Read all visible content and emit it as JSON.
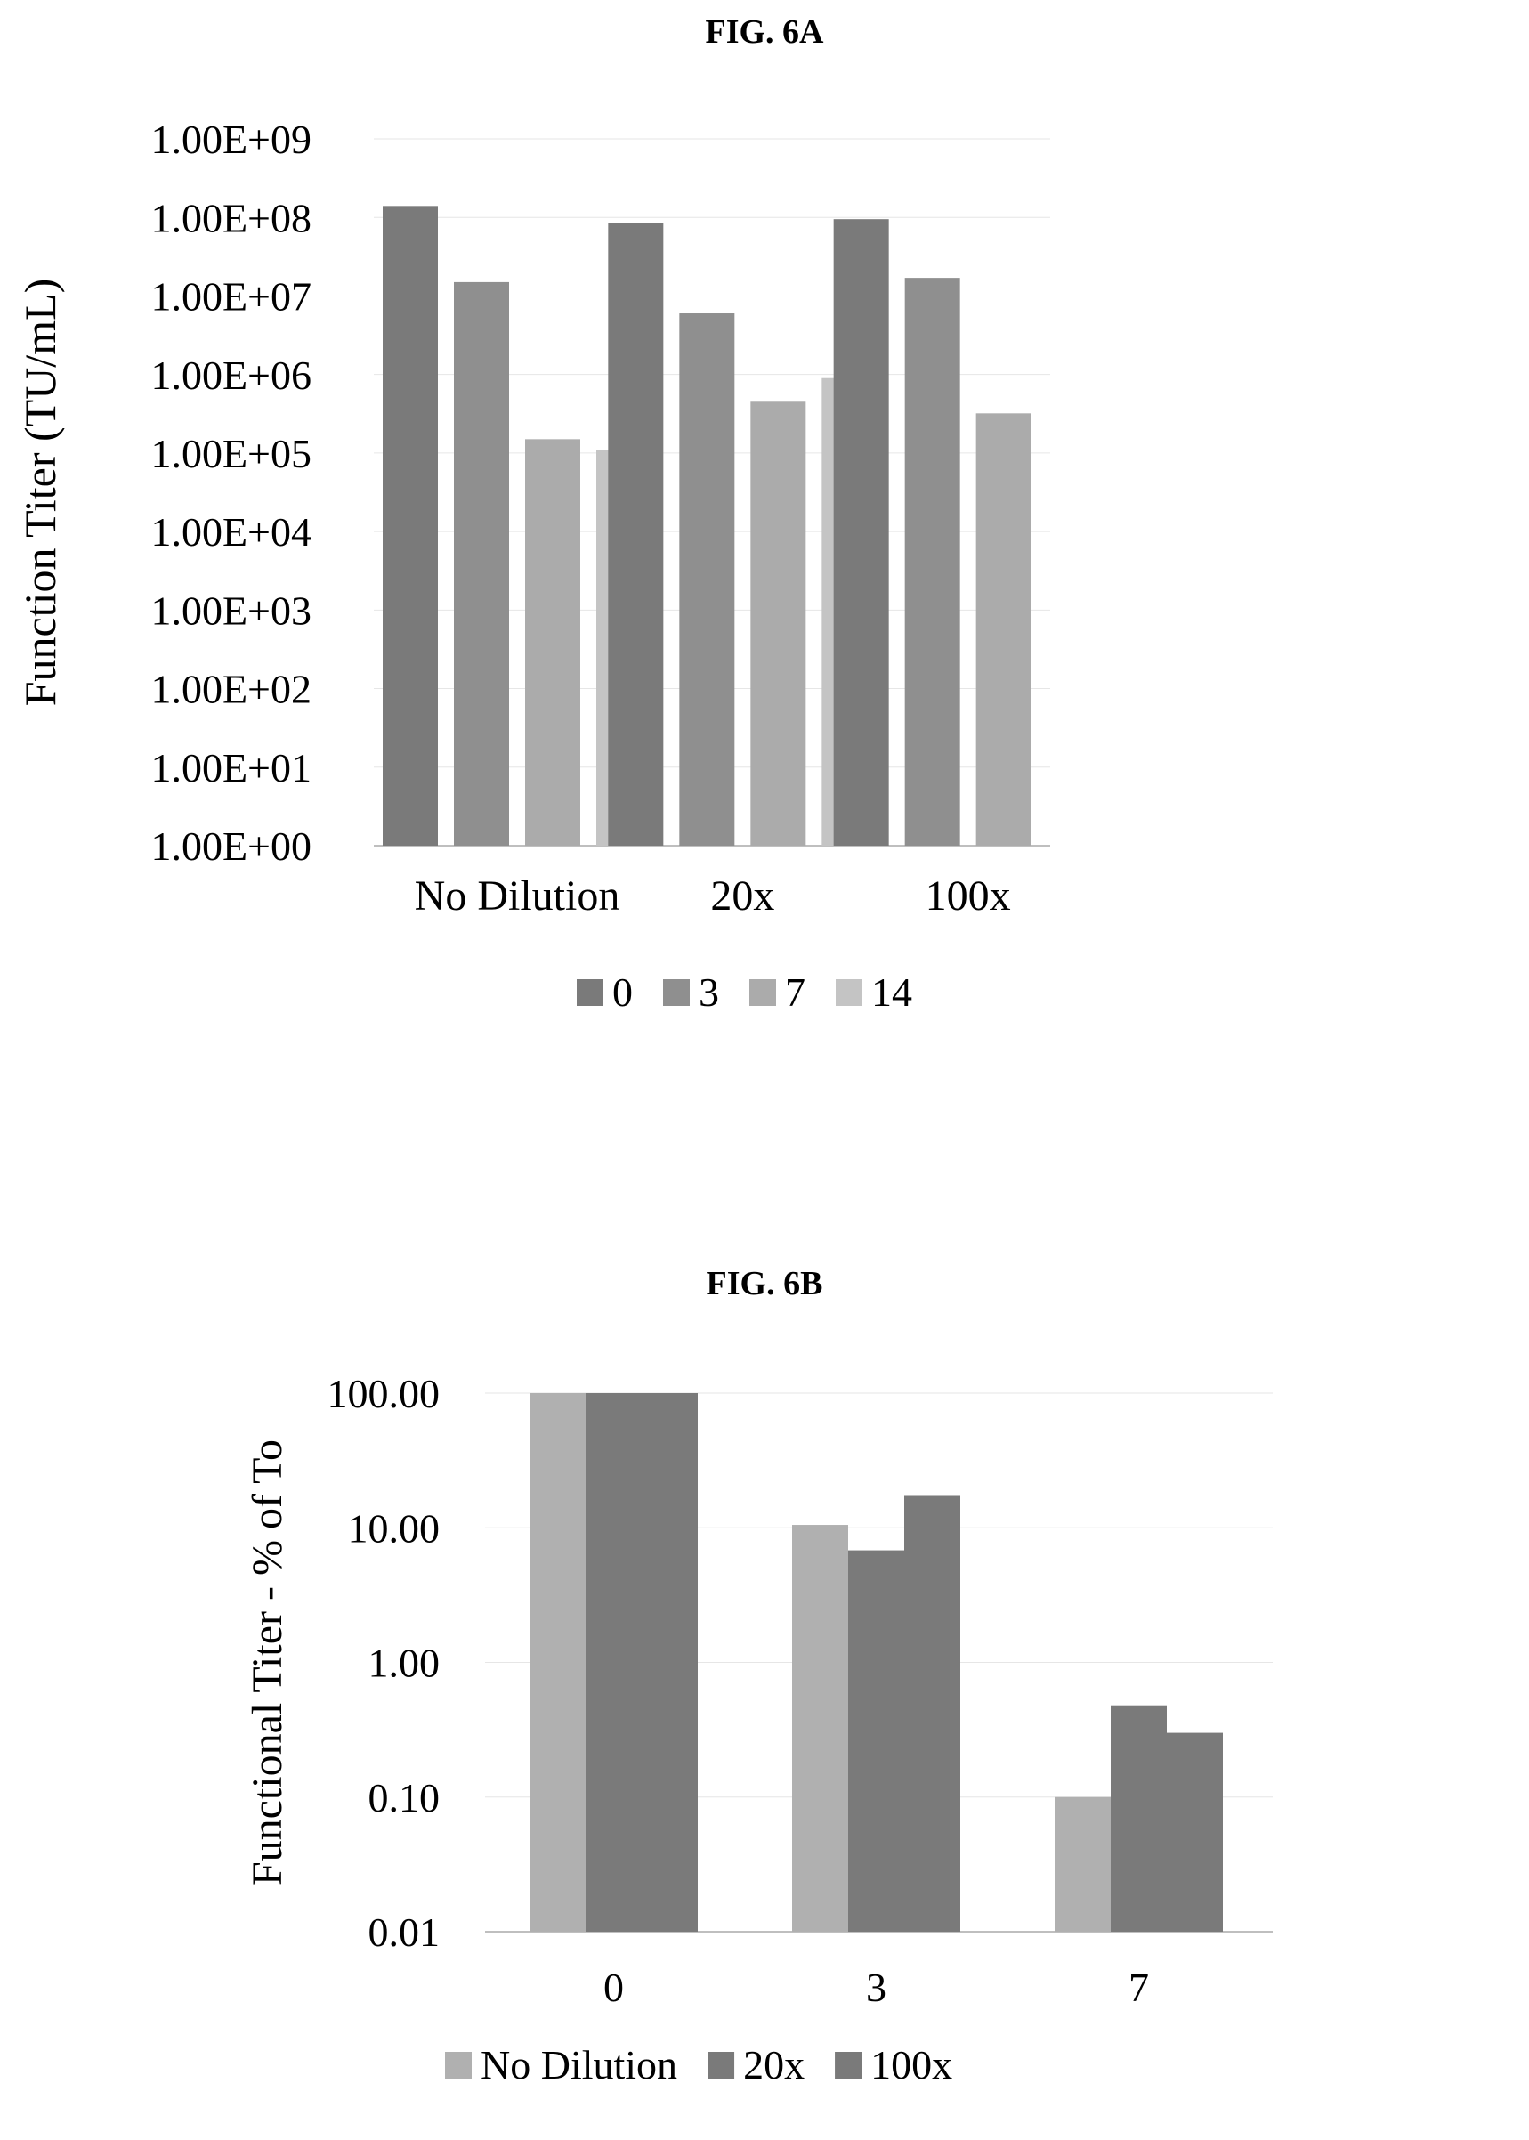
{
  "figures": [
    {
      "title": "FIG. 6A"
    },
    {
      "title": "FIG. 6B"
    }
  ],
  "chart_data": [
    {
      "type": "bar",
      "ylabel": "Function Titer (TU/mL)",
      "yscale": "log",
      "ylim": [
        1,
        1000000000
      ],
      "y_ticks": [
        "1.00E+00",
        "1.00E+01",
        "1.00E+02",
        "1.00E+03",
        "1.00E+04",
        "1.00E+05",
        "1.00E+06",
        "1.00E+07",
        "1.00E+08",
        "1.00E+09"
      ],
      "categories": [
        "No Dilution",
        "20x",
        "100x"
      ],
      "series": [
        {
          "name": "0",
          "color": "#7a7a7a",
          "values": [
            140000000,
            85000000,
            95000000
          ]
        },
        {
          "name": "3",
          "color": "#8f8f8f",
          "values": [
            15000000,
            6000000,
            17000000
          ]
        },
        {
          "name": "7",
          "color": "#ababab",
          "values": [
            150000,
            450000,
            320000
          ]
        },
        {
          "name": "14",
          "color": "#c4c4c4",
          "values": [
            110000,
            900000,
            null
          ]
        }
      ],
      "legend_position": "bottom"
    },
    {
      "type": "bar",
      "ylabel": "Functional Titer - % of To",
      "yscale": "log",
      "ylim": [
        0.01,
        100
      ],
      "y_ticks": [
        "0.01",
        "0.10",
        "1.00",
        "10.00",
        "100.00"
      ],
      "categories": [
        "0",
        "3",
        "7"
      ],
      "series": [
        {
          "name": "No Dilution",
          "color": "#b0b0b0",
          "values": [
            100,
            10.5,
            0.1
          ]
        },
        {
          "name": "20x",
          "color": "#7a7a7a",
          "values": [
            100,
            6.8,
            0.48
          ]
        },
        {
          "name": "100x",
          "color": "#7a7a7a",
          "values": [
            100,
            17.5,
            0.3
          ]
        }
      ],
      "legend_position": "bottom"
    }
  ]
}
